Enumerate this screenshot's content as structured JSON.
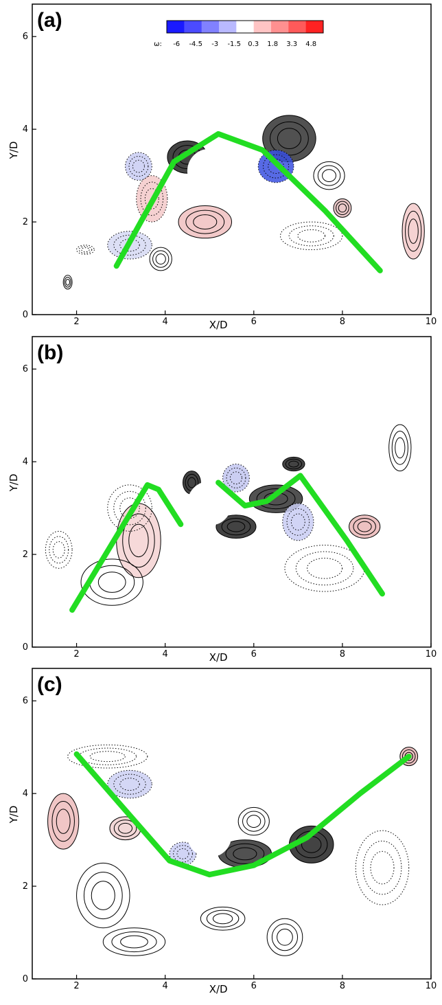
{
  "chart_data": [
    {
      "type": "line",
      "panel_label": "(a)",
      "xlabel": "X/D",
      "ylabel": "Y/D",
      "xlim": [
        1,
        10
      ],
      "ylim": [
        0,
        6.7
      ],
      "xticks": [
        "2",
        "4",
        "6",
        "8",
        "10"
      ],
      "yticks": [
        "0",
        "2",
        "4",
        "6"
      ],
      "cylinder": {
        "x": 5,
        "y": 3.1,
        "diameter": 1
      },
      "series": [
        {
          "color": "#22dd22",
          "points": [
            [
              2.9,
              1.05
            ],
            [
              4.2,
              3.3
            ],
            [
              5.2,
              3.9
            ],
            [
              6.2,
              3.55
            ],
            [
              7.6,
              2.25
            ],
            [
              8.85,
              0.95
            ]
          ]
        }
      ],
      "colorbar": {
        "symbol": "ω:",
        "labels": [
          "-6",
          "-4.5",
          "-3",
          "-1.5",
          "0.3",
          "1.8",
          "3.3",
          "4.8"
        ],
        "colors": [
          "#1a1aff",
          "#4b4bff",
          "#8181ff",
          "#b9b9ff",
          "#ffffff",
          "#ffc4c4",
          "#ff9090",
          "#ff5a5a",
          "#ff2222"
        ]
      }
    },
    {
      "type": "line",
      "panel_label": "(b)",
      "xlabel": "X/D",
      "ylabel": "Y/D",
      "xlim": [
        1,
        10
      ],
      "ylim": [
        0,
        6.7
      ],
      "xticks": [
        "2",
        "4",
        "6",
        "8",
        "10"
      ],
      "yticks": [
        "0",
        "2",
        "4",
        "6"
      ],
      "cylinder": {
        "x": 5,
        "y": 3.1,
        "diameter": 1
      },
      "series": [
        {
          "color": "#22dd22",
          "points": [
            [
              1.9,
              0.8
            ],
            [
              3.6,
              3.5
            ],
            [
              3.85,
              3.4
            ],
            [
              4.35,
              2.65
            ]
          ]
        },
        {
          "color": "#22dd22",
          "points": [
            [
              5.2,
              3.55
            ],
            [
              5.8,
              3.05
            ],
            [
              6.3,
              3.15
            ],
            [
              7.05,
              3.7
            ],
            [
              8.1,
              2.3
            ],
            [
              8.9,
              1.15
            ]
          ]
        }
      ]
    },
    {
      "type": "line",
      "panel_label": "(c)",
      "xlabel": "X/D",
      "ylabel": "Y/D",
      "xlim": [
        1,
        10
      ],
      "ylim": [
        0,
        6.7
      ],
      "xticks": [
        "2",
        "4",
        "6",
        "8",
        "10"
      ],
      "yticks": [
        "0",
        "2",
        "4",
        "6"
      ],
      "cylinder": {
        "x": 5,
        "y": 3.1,
        "diameter": 1
      },
      "series": [
        {
          "color": "#22dd22",
          "points": [
            [
              2.0,
              4.85
            ],
            [
              3.0,
              3.75
            ],
            [
              4.1,
              2.55
            ],
            [
              5.0,
              2.25
            ],
            [
              6.0,
              2.45
            ],
            [
              7.2,
              3.05
            ],
            [
              8.4,
              4.0
            ],
            [
              9.5,
              4.8
            ]
          ]
        }
      ]
    }
  ]
}
